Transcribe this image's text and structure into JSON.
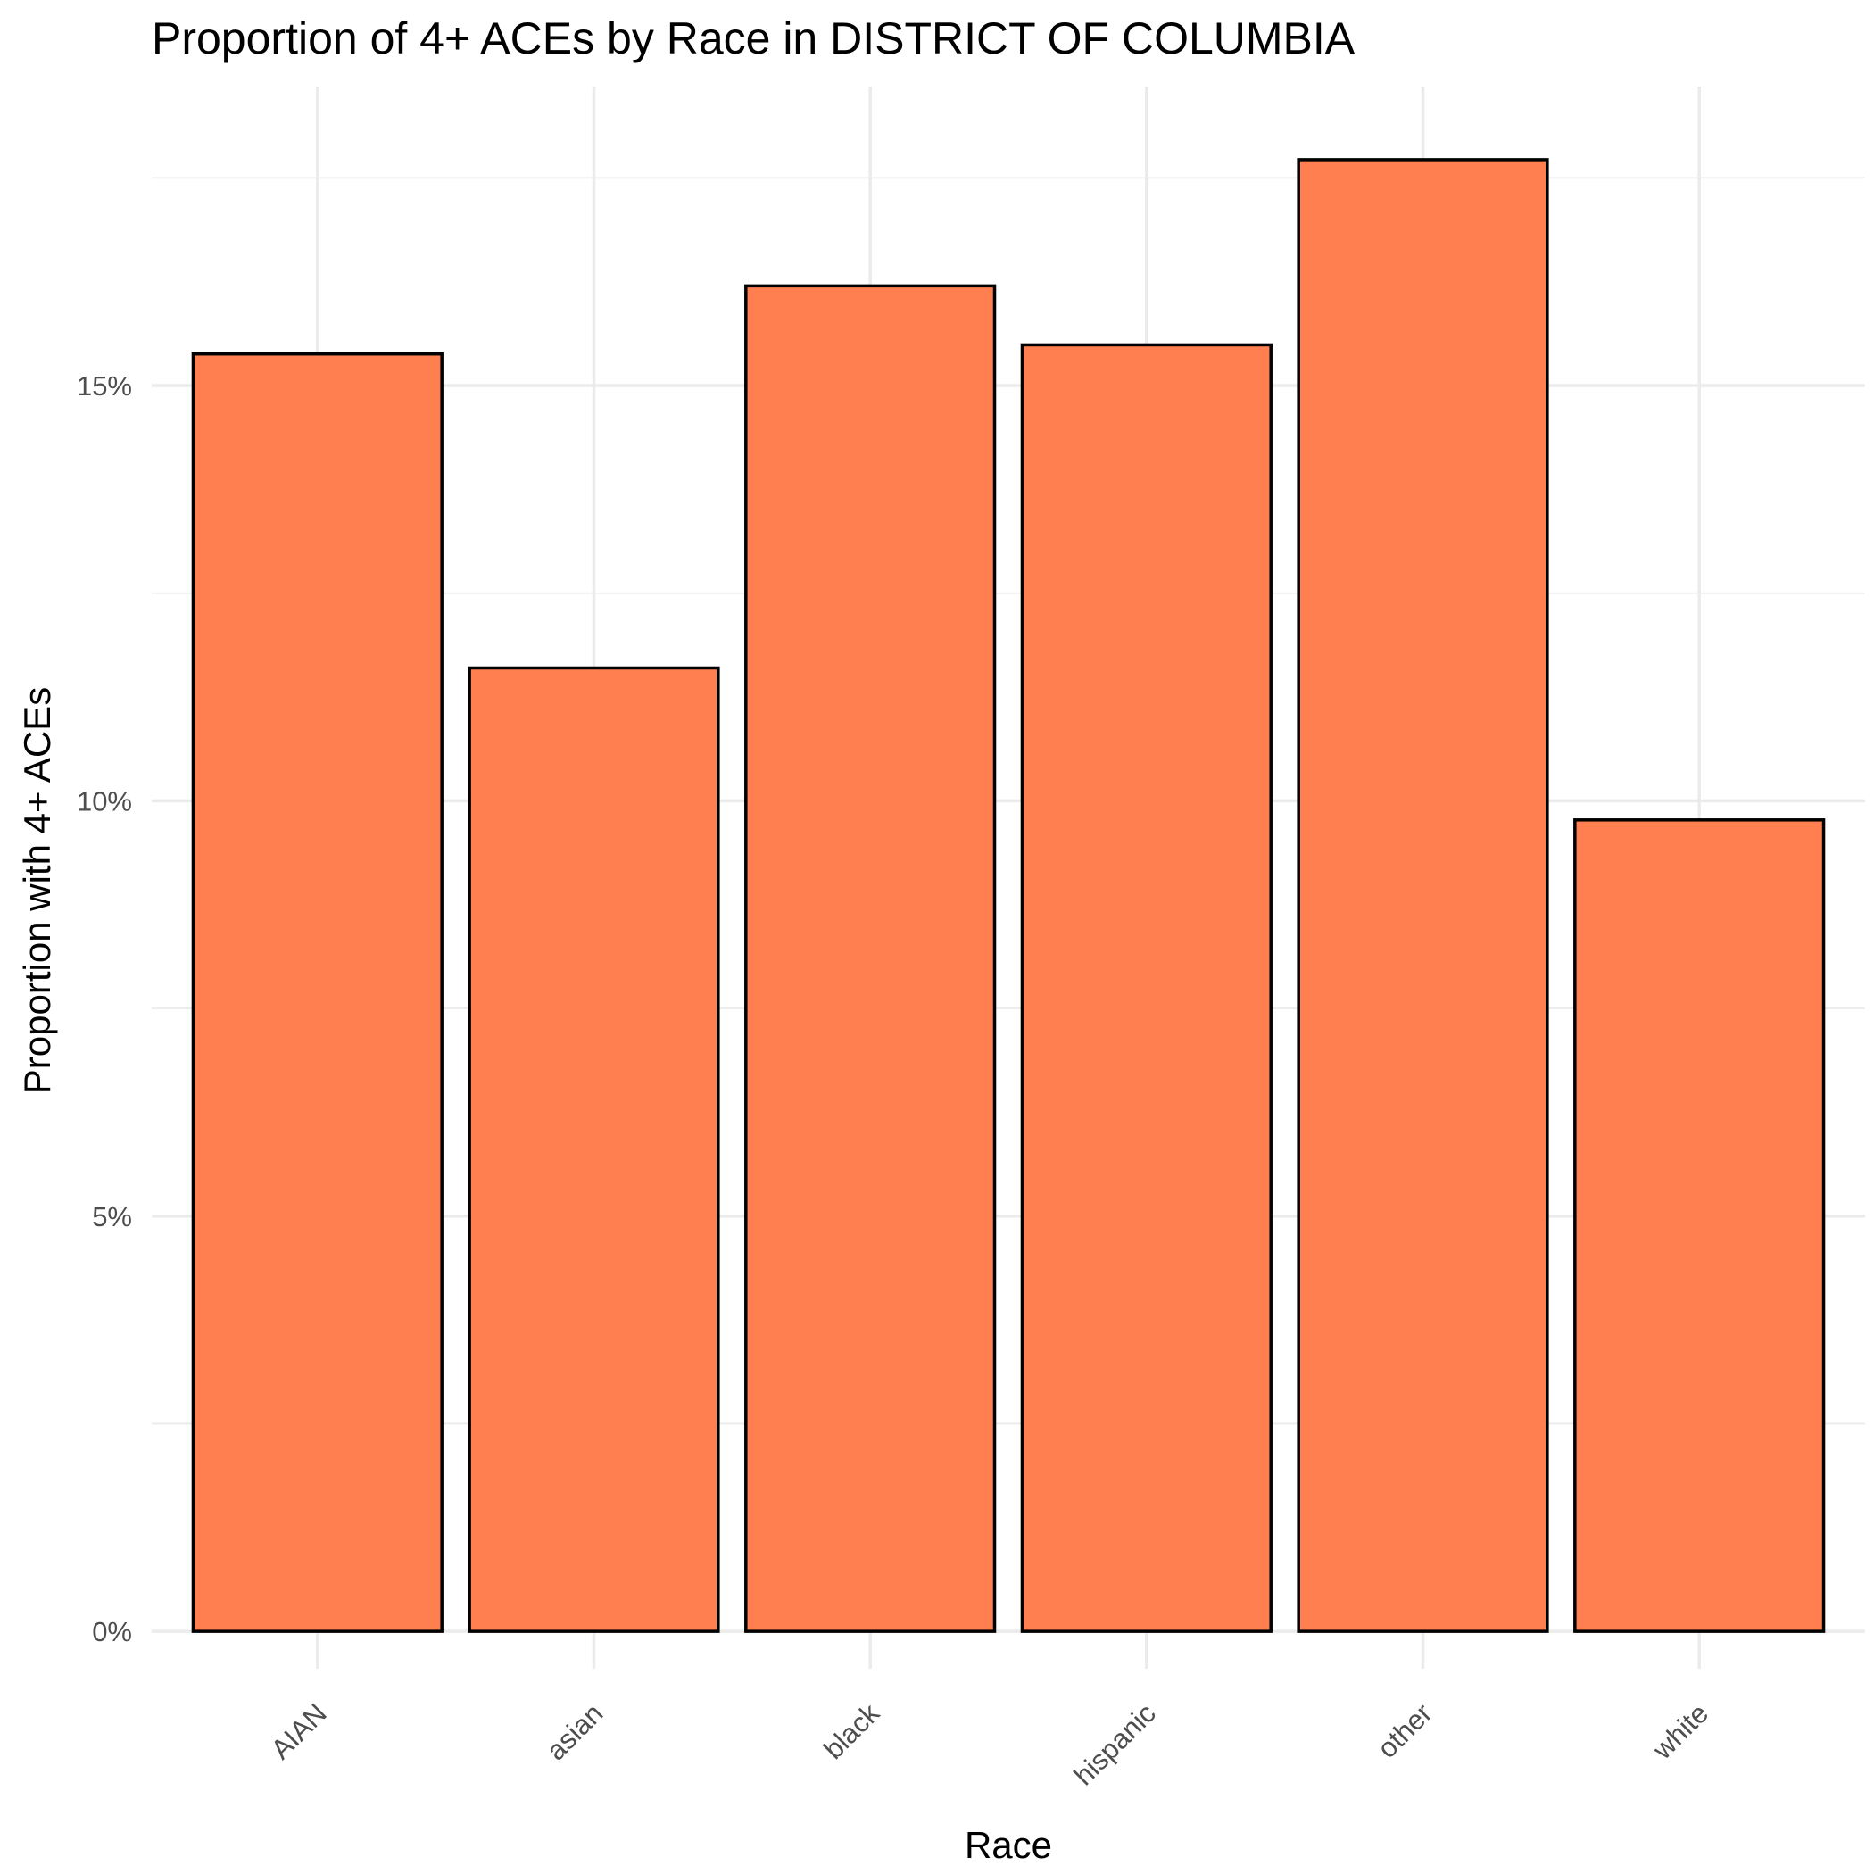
{
  "chart_data": {
    "type": "bar",
    "title": "Proportion of 4+ ACEs by Race in DISTRICT OF COLUMBIA",
    "xlabel": "Race",
    "ylabel": "Proportion with 4+ ACEs",
    "categories": [
      "AIAN",
      "asian",
      "black",
      "hispanic",
      "other",
      "white"
    ],
    "values": [
      0.1538,
      0.116,
      0.162,
      0.1549,
      0.1772,
      0.0977
    ],
    "ylim": [
      -0.0045,
      0.186
    ],
    "yticks": [
      0,
      0.05,
      0.1,
      0.15
    ],
    "ytick_labels": [
      "0%",
      "5%",
      "10%",
      "15%"
    ],
    "bar_color": "#FF7F50",
    "bar_outline": "#000000",
    "grid": true,
    "legend": "none"
  }
}
